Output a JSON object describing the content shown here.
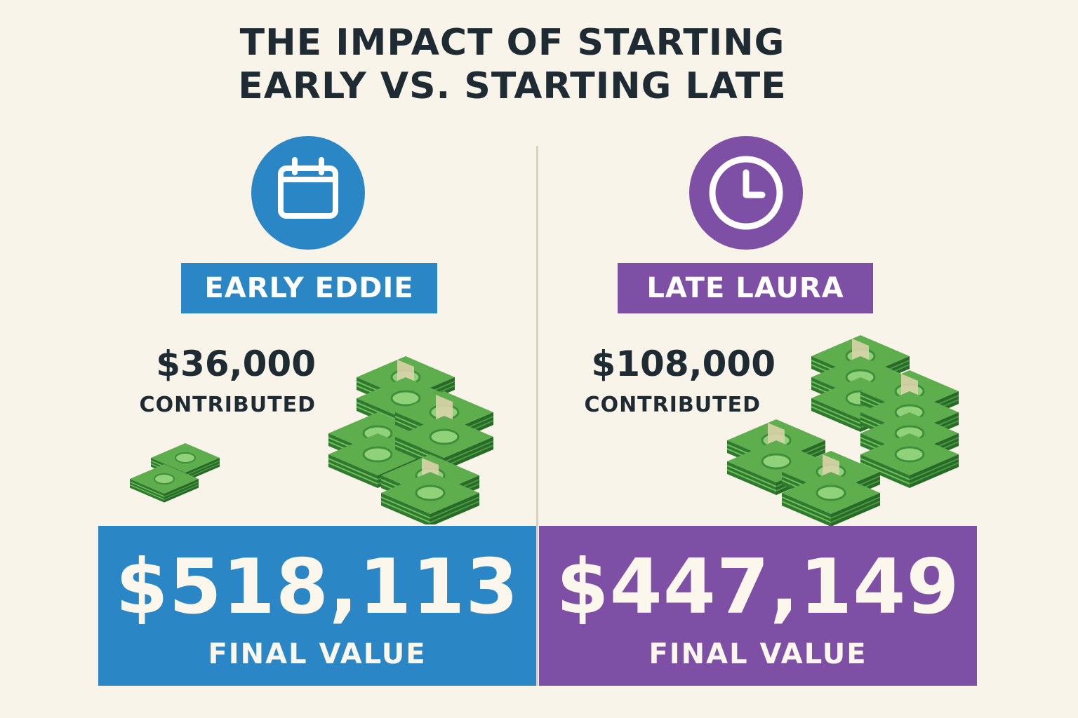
{
  "title": {
    "line1": "THE IMPACT OF STARTING",
    "line2": "EARLY VS. STARTING LATE"
  },
  "colors": {
    "background": "#f8f4e9",
    "blue": "#2a86c4",
    "purple": "#7d4fa5",
    "text_dark": "#1f2b33",
    "money_green": "#3a8a3a"
  },
  "left": {
    "icon": "calendar-icon",
    "name": "EARLY EDDIE",
    "contributed_amount": "$36,000",
    "contributed_label": "CONTRIBUTED",
    "final_value": "$518,113",
    "final_label": "FINAL VALUE"
  },
  "right": {
    "icon": "clock-icon",
    "name": "LATE LAURA",
    "contributed_amount": "$108,000",
    "contributed_label": "CONTRIBUTED",
    "final_value": "$447,149",
    "final_label": "FINAL VALUE"
  }
}
